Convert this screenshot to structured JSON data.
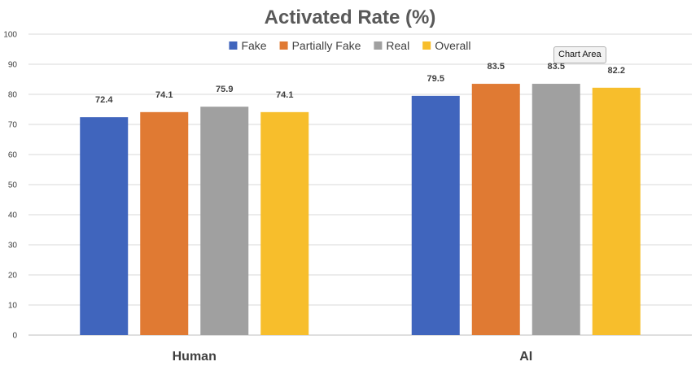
{
  "chart_data": {
    "type": "bar",
    "title": "Activated Rate (%)",
    "categories": [
      "Human",
      "AI"
    ],
    "series": [
      {
        "name": "Fake",
        "color": "#4065BD",
        "values": [
          72.4,
          79.5
        ]
      },
      {
        "name": "Partially Fake",
        "color": "#E07A33",
        "values": [
          74.1,
          83.5
        ]
      },
      {
        "name": "Real",
        "color": "#A0A0A0",
        "values": [
          75.9,
          83.5
        ]
      },
      {
        "name": "Overall",
        "color": "#F7BE2C",
        "values": [
          74.1,
          82.2
        ]
      }
    ],
    "ylim": [
      0,
      100
    ],
    "yticks": [
      0,
      10,
      20,
      30,
      40,
      50,
      60,
      70,
      80,
      90,
      100
    ],
    "grid": true,
    "legend_position": "top-center",
    "data_labels": true
  },
  "tooltip": {
    "text": "Chart Area"
  }
}
